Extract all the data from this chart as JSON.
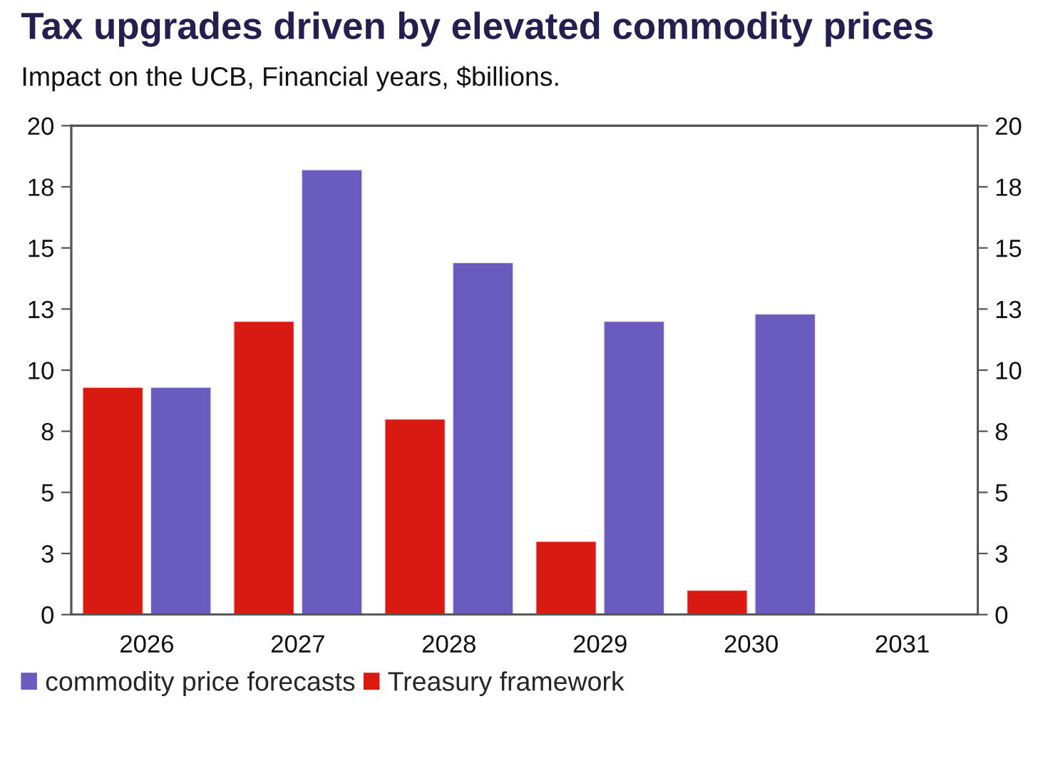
{
  "chart_data": {
    "type": "bar",
    "title": "Tax upgrades driven by elevated commodity prices",
    "subtitle": "Impact on the UCB, Financial years, $billions.",
    "categories": [
      "2026",
      "2027",
      "2028",
      "2029",
      "2030",
      "2031"
    ],
    "series": [
      {
        "name": "Treasury framework",
        "color": "#d81a12",
        "values": [
          9.3,
          12.0,
          8.0,
          3.0,
          1.0,
          null
        ]
      },
      {
        "name": "commodity price forecasts",
        "color": "#6a5bbf",
        "values": [
          9.3,
          18.2,
          14.4,
          12.0,
          12.3,
          null
        ]
      }
    ],
    "ylim": [
      0,
      20
    ],
    "yticks": [
      0,
      {
        "value": 2.5,
        "label": "3"
      },
      5,
      {
        "value": 7.5,
        "label": "8"
      },
      10,
      {
        "value": 12.5,
        "label": "13"
      },
      15,
      {
        "value": 17.5,
        "label": "18"
      },
      20
    ],
    "y2lim": [
      0,
      20
    ],
    "y2ticks": [
      0,
      {
        "value": 2.5,
        "label": "3"
      },
      5,
      {
        "value": 7.5,
        "label": "8"
      },
      10,
      {
        "value": 12.5,
        "label": "13"
      },
      15,
      {
        "value": 17.5,
        "label": "18"
      },
      20
    ],
    "grid": false,
    "legend": "bottom"
  }
}
